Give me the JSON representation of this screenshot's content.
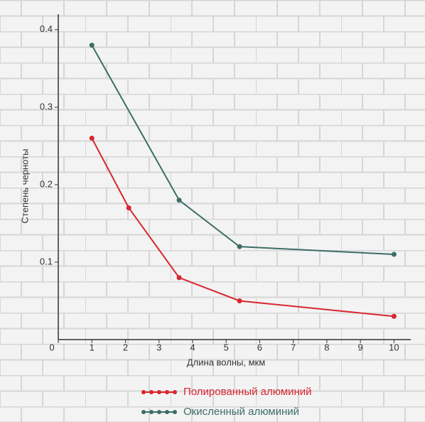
{
  "chart_data": {
    "type": "line",
    "x_label": "Длина волны, мкм",
    "y_label": "Степень черноты",
    "xlim": [
      0,
      10.5
    ],
    "ylim": [
      0,
      0.42
    ],
    "xticks": [
      0,
      1,
      2,
      3,
      4,
      5,
      6,
      7,
      8,
      9,
      10
    ],
    "yticks": [
      0.1,
      0.2,
      0.3,
      0.4
    ],
    "grid": false,
    "series": [
      {
        "name": "Полированный алюминий",
        "color": "#d8262f",
        "x": [
          1,
          2.1,
          3.6,
          5.4,
          10
        ],
        "values": [
          0.26,
          0.17,
          0.08,
          0.05,
          0.03
        ]
      },
      {
        "name": "Окисленный алюминий",
        "color": "#3d6e66",
        "x": [
          1,
          3.6,
          5.4,
          10
        ],
        "values": [
          0.38,
          0.18,
          0.12,
          0.11
        ]
      }
    ]
  }
}
